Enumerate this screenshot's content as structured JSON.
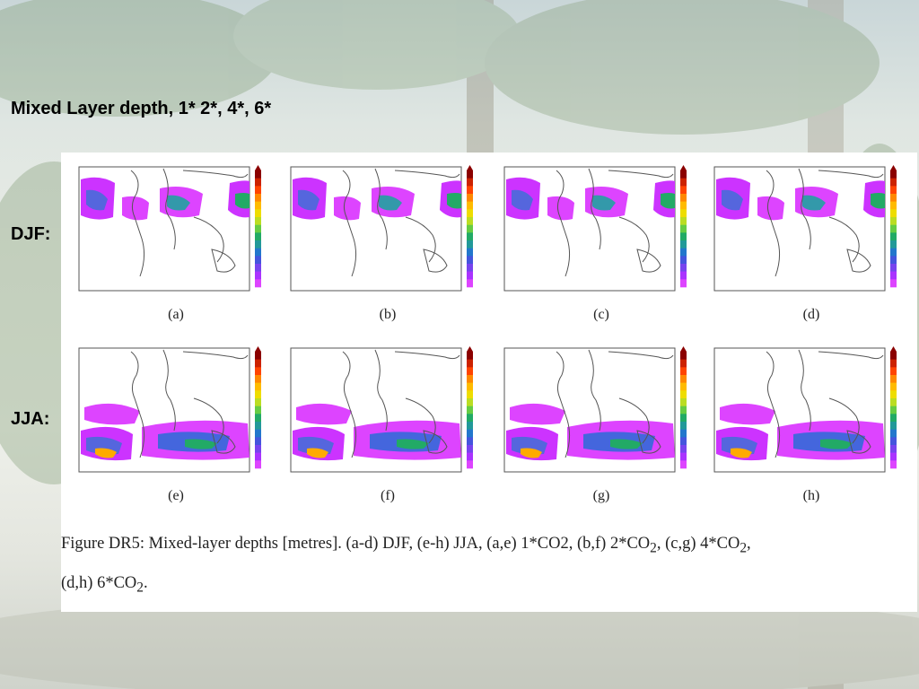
{
  "slide": {
    "title": "Mixed Layer depth, 1* 2*, 4*, 6*",
    "row_labels": [
      "DJF:",
      "JJA:"
    ]
  },
  "figure": {
    "panels": [
      {
        "label": "(a)",
        "season": "DJF",
        "scenario": "1*CO2"
      },
      {
        "label": "(b)",
        "season": "DJF",
        "scenario": "2*CO2"
      },
      {
        "label": "(c)",
        "season": "DJF",
        "scenario": "4*CO2"
      },
      {
        "label": "(d)",
        "season": "DJF",
        "scenario": "6*CO2"
      },
      {
        "label": "(e)",
        "season": "JJA",
        "scenario": "1*CO2"
      },
      {
        "label": "(f)",
        "season": "JJA",
        "scenario": "2*CO2"
      },
      {
        "label": "(g)",
        "season": "JJA",
        "scenario": "4*CO2"
      },
      {
        "label": "(h)",
        "season": "JJA",
        "scenario": "6*CO2"
      }
    ],
    "caption": {
      "line1_prefix": "Figure DR5: Mixed-layer depths [metres].  (a-d) DJF, (e-h) JJA, (a,e) 1*CO2, (b,f) 2*CO",
      "sub": "2",
      "line1_mid1": ", (c,g) 4*CO",
      "line1_mid2": ",",
      "line2_prefix": "(d,h) 6*CO",
      "line2_suffix": "."
    },
    "colorbar_colors": [
      "#8b0000",
      "#cc2200",
      "#ff4400",
      "#ff8800",
      "#ffbb00",
      "#eedd00",
      "#bbdd22",
      "#66cc44",
      "#22aa66",
      "#229999",
      "#2277cc",
      "#4455dd",
      "#7744ee",
      "#aa33ff",
      "#dd44ff"
    ]
  }
}
